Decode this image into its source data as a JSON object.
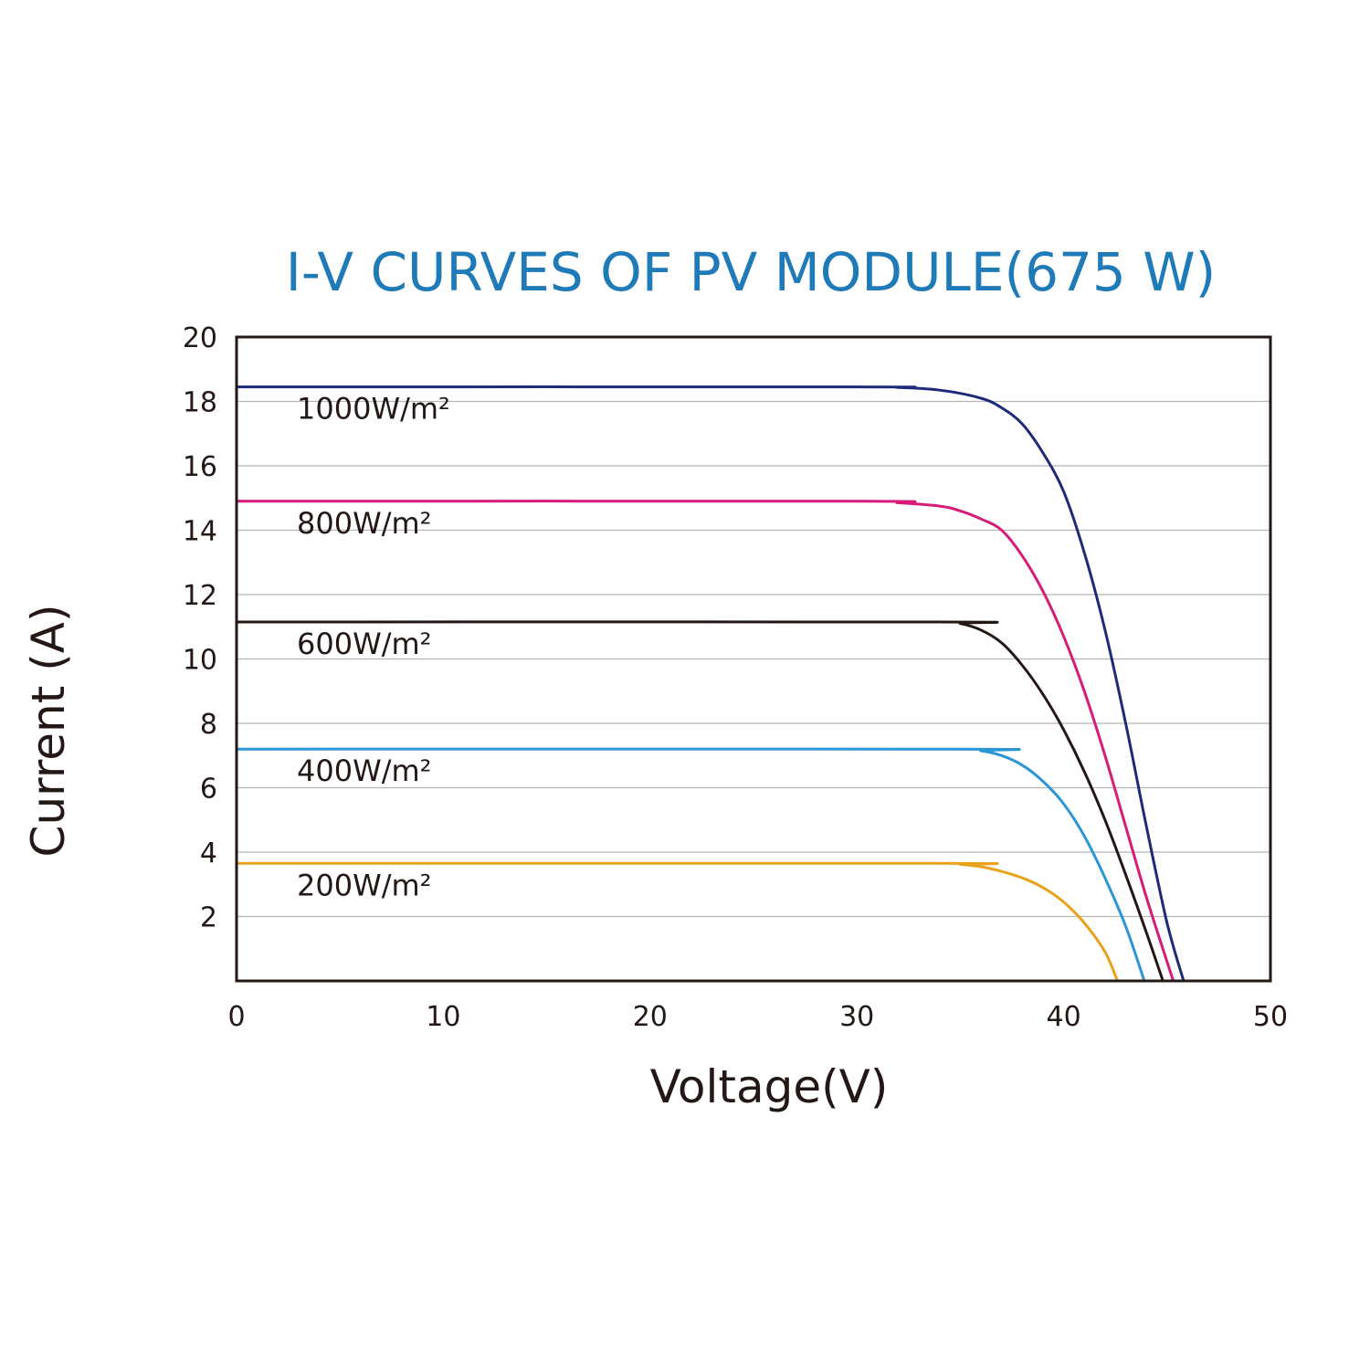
{
  "chart_data": {
    "type": "line",
    "title": "I-V CURVES OF PV MODULE(675 W)",
    "xlabel": "Voltage(V)",
    "ylabel": "Current (A)",
    "xlim": [
      0,
      50
    ],
    "ylim": [
      0,
      20
    ],
    "xticks": [
      "0",
      "10",
      "20",
      "30",
      "40",
      "50"
    ],
    "yticks": [
      "2",
      "4",
      "6",
      "8",
      "10",
      "12",
      "14",
      "16",
      "18",
      "20"
    ],
    "grid": "horizontal",
    "series": [
      {
        "name": "1000W/m²",
        "color": "#1d2a78",
        "x": [
          0,
          30,
          32,
          34,
          36,
          37,
          38,
          39,
          40,
          41,
          42,
          43,
          44,
          45,
          45.8
        ],
        "y": [
          18.45,
          18.45,
          18.43,
          18.35,
          18.1,
          17.8,
          17.3,
          16.4,
          15.2,
          13.3,
          10.9,
          8.0,
          4.8,
          1.8,
          0
        ]
      },
      {
        "name": "800W/m²",
        "color": "#d41c78",
        "x": [
          0,
          30,
          32,
          34,
          35,
          36,
          37,
          38,
          39,
          40,
          41,
          42,
          43,
          44,
          45.3
        ],
        "y": [
          14.9,
          14.9,
          14.85,
          14.75,
          14.6,
          14.35,
          14.0,
          13.2,
          12.1,
          10.7,
          9.0,
          7.0,
          4.8,
          2.6,
          0
        ]
      },
      {
        "name": "600W/m²",
        "color": "#231815",
        "x": [
          0,
          34,
          35,
          36,
          37,
          38,
          39,
          40,
          41,
          42,
          43,
          44,
          44.8
        ],
        "y": [
          11.15,
          11.15,
          11.1,
          10.9,
          10.5,
          9.8,
          8.9,
          7.8,
          6.5,
          5.0,
          3.3,
          1.5,
          0
        ]
      },
      {
        "name": "400W/m²",
        "color": "#2b95d6",
        "x": [
          0,
          35,
          36,
          37,
          38,
          39,
          40,
          41,
          42,
          43,
          43.9
        ],
        "y": [
          7.2,
          7.2,
          7.15,
          7.0,
          6.7,
          6.2,
          5.5,
          4.5,
          3.2,
          1.7,
          0
        ]
      },
      {
        "name": "200W/m²",
        "color": "#e8a21c",
        "x": [
          0,
          34,
          35,
          36,
          37,
          38,
          39,
          40,
          41,
          42,
          42.6
        ],
        "y": [
          3.65,
          3.65,
          3.62,
          3.55,
          3.4,
          3.2,
          2.9,
          2.45,
          1.8,
          0.9,
          0
        ]
      }
    ]
  }
}
